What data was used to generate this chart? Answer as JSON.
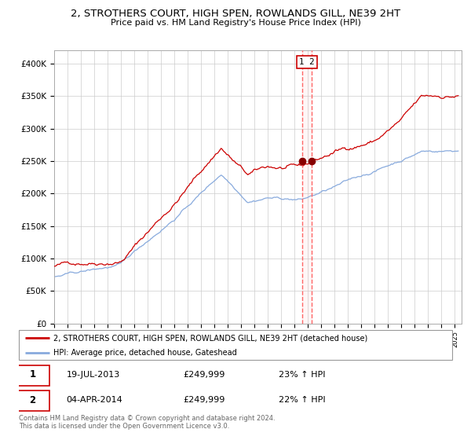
{
  "title": "2, STROTHERS COURT, HIGH SPEN, ROWLANDS GILL, NE39 2HT",
  "subtitle": "Price paid vs. HM Land Registry's House Price Index (HPI)",
  "legend_line1": "2, STROTHERS COURT, HIGH SPEN, ROWLANDS GILL, NE39 2HT (detached house)",
  "legend_line2": "HPI: Average price, detached house, Gateshead",
  "red_color": "#cc0000",
  "blue_color": "#88aadd",
  "marker_color": "#880000",
  "vline_color": "#ff6666",
  "purchase1_date": 2013.55,
  "purchase2_date": 2014.27,
  "purchase1_price": 249999,
  "purchase2_price": 249999,
  "footer": "Contains HM Land Registry data © Crown copyright and database right 2024.\nThis data is licensed under the Open Government Licence v3.0.",
  "ylim": [
    0,
    420000
  ],
  "yticks": [
    0,
    50000,
    100000,
    150000,
    200000,
    250000,
    300000,
    350000,
    400000
  ],
  "ytick_labels": [
    "£0",
    "£50K",
    "£100K",
    "£150K",
    "£200K",
    "£250K",
    "£300K",
    "£350K",
    "£400K"
  ],
  "xmin": 1995,
  "xmax": 2025.5
}
